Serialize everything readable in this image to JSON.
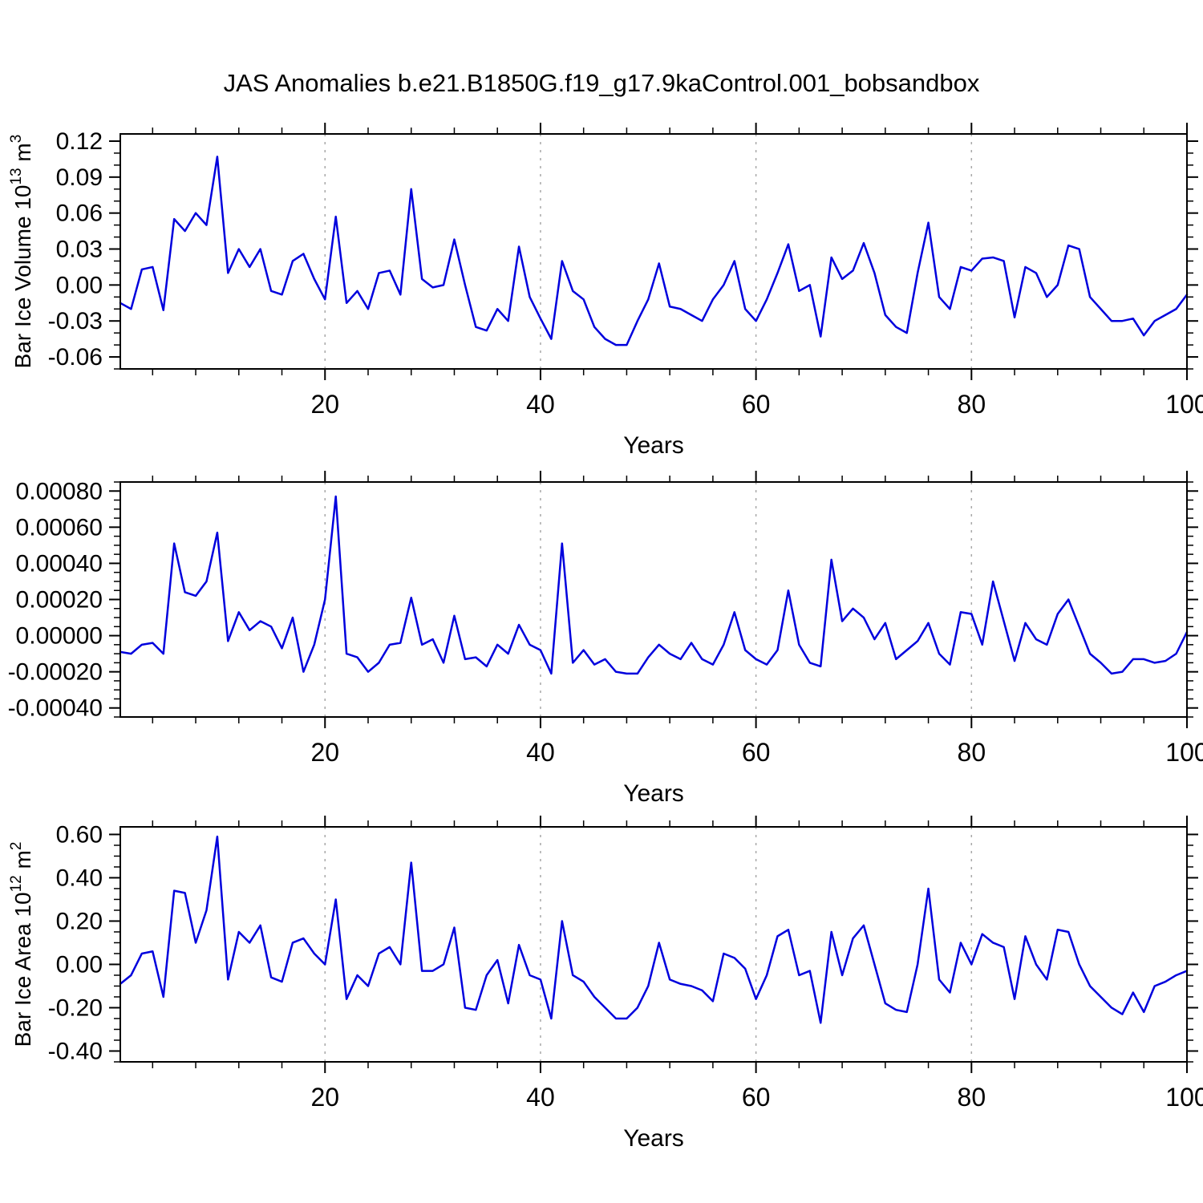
{
  "chart_data": {
    "type": "line",
    "title": "JAS Anomalies b.e21.B1850G.f19_g17.9kaControl.001_bobsandbox",
    "line_color": "#0000dd",
    "grid_color": "#a8a8a8",
    "axis_color": "#000000",
    "x": {
      "min": 1,
      "max": 100,
      "label": "Years",
      "major_ticks": [
        20,
        40,
        60,
        80,
        100
      ],
      "minor_step": 4,
      "grid_lines": [
        20,
        40,
        60,
        80
      ]
    },
    "panels": [
      {
        "name": "ice-volume",
        "ylabel_segments": [
          {
            "t": "Bar Ice Volume 10"
          },
          {
            "t": "13",
            "sup": true
          },
          {
            "t": " m"
          },
          {
            "t": "3",
            "sup": true
          }
        ],
        "ymin": -0.07,
        "ymax": 0.126,
        "yminor_step": 0.01,
        "yticks": [
          {
            "v": 0.12,
            "label": "0.12"
          },
          {
            "v": 0.09,
            "label": "0.09"
          },
          {
            "v": 0.06,
            "label": "0.06"
          },
          {
            "v": 0.03,
            "label": "0.03"
          },
          {
            "v": 0.0,
            "label": "0.00"
          },
          {
            "v": -0.03,
            "label": "-0.03"
          },
          {
            "v": -0.06,
            "label": "-0.06"
          }
        ],
        "values": [
          -0.015,
          -0.02,
          0.013,
          0.015,
          -0.021,
          0.055,
          0.045,
          0.06,
          0.05,
          0.107,
          0.01,
          0.03,
          0.015,
          0.03,
          -0.005,
          -0.008,
          0.02,
          0.026,
          0.005,
          -0.012,
          0.057,
          -0.015,
          -0.005,
          -0.02,
          0.01,
          0.012,
          -0.008,
          0.08,
          0.005,
          -0.002,
          0.0,
          0.038,
          0.0,
          -0.035,
          -0.038,
          -0.02,
          -0.03,
          0.032,
          -0.01,
          -0.028,
          -0.045,
          0.02,
          -0.005,
          -0.012,
          -0.035,
          -0.045,
          -0.05,
          -0.05,
          -0.03,
          -0.012,
          0.018,
          -0.018,
          -0.02,
          -0.025,
          -0.03,
          -0.012,
          0.0,
          0.02,
          -0.02,
          -0.03,
          -0.012,
          0.01,
          0.034,
          -0.005,
          0.0,
          -0.043,
          0.023,
          0.005,
          0.012,
          0.035,
          0.01,
          -0.025,
          -0.035,
          -0.04,
          0.01,
          0.052,
          -0.01,
          -0.02,
          0.015,
          0.012,
          0.022,
          0.023,
          0.02,
          -0.027,
          0.015,
          0.01,
          -0.01,
          0.0,
          0.033,
          0.03,
          -0.01,
          -0.02,
          -0.03,
          -0.03,
          -0.028,
          -0.042,
          -0.03,
          -0.025,
          -0.02,
          -0.008
        ]
      },
      {
        "name": "middle",
        "ylabel_segments": null,
        "ymin": -0.00045,
        "ymax": 0.00085,
        "yminor_step": 5e-05,
        "yticks": [
          {
            "v": 0.0008,
            "label": "0.00080"
          },
          {
            "v": 0.0006,
            "label": "0.00060"
          },
          {
            "v": 0.0004,
            "label": "0.00040"
          },
          {
            "v": 0.0002,
            "label": "0.00020"
          },
          {
            "v": 0.0,
            "label": "0.00000"
          },
          {
            "v": -0.0002,
            "label": "-0.00020"
          },
          {
            "v": -0.0004,
            "label": "-0.00040"
          }
        ],
        "values": [
          -9e-05,
          -0.0001,
          -5e-05,
          -4e-05,
          -0.0001,
          0.00051,
          0.00024,
          0.00022,
          0.0003,
          0.00057,
          -3e-05,
          0.00013,
          3e-05,
          8e-05,
          5e-05,
          -7e-05,
          0.0001,
          -0.0002,
          -5e-05,
          0.0002,
          0.00077,
          -0.0001,
          -0.00012,
          -0.0002,
          -0.00015,
          -5e-05,
          -4e-05,
          0.00021,
          -5e-05,
          -2e-05,
          -0.00015,
          0.00011,
          -0.00013,
          -0.00012,
          -0.00017,
          -5e-05,
          -0.0001,
          6e-05,
          -5e-05,
          -8e-05,
          -0.00021,
          0.00051,
          -0.00015,
          -8e-05,
          -0.00016,
          -0.00013,
          -0.0002,
          -0.00021,
          -0.00021,
          -0.00012,
          -5e-05,
          -0.0001,
          -0.00013,
          -4e-05,
          -0.00013,
          -0.00016,
          -5e-05,
          0.00013,
          -8e-05,
          -0.00013,
          -0.00016,
          -8e-05,
          0.00025,
          -5e-05,
          -0.00015,
          -0.00017,
          0.00042,
          8e-05,
          0.00015,
          0.0001,
          -2e-05,
          7e-05,
          -0.00013,
          -8e-05,
          -3e-05,
          7e-05,
          -0.0001,
          -0.00016,
          0.00013,
          0.00012,
          -5e-05,
          0.0003,
          8e-05,
          -0.00014,
          7e-05,
          -2e-05,
          -5e-05,
          0.00012,
          0.0002,
          5e-05,
          -0.0001,
          -0.00015,
          -0.00021,
          -0.0002,
          -0.00013,
          -0.00013,
          -0.00015,
          -0.00014,
          -0.0001,
          2e-05
        ]
      },
      {
        "name": "ice-area",
        "ylabel_segments": [
          {
            "t": "Bar Ice Area 10"
          },
          {
            "t": "12",
            "sup": true
          },
          {
            "t": " m"
          },
          {
            "t": "2",
            "sup": true
          }
        ],
        "ymin": -0.45,
        "ymax": 0.635,
        "yminor_step": 0.05,
        "yticks": [
          {
            "v": 0.6,
            "label": "0.60"
          },
          {
            "v": 0.4,
            "label": "0.40"
          },
          {
            "v": 0.2,
            "label": "0.20"
          },
          {
            "v": 0.0,
            "label": "0.00"
          },
          {
            "v": -0.2,
            "label": "-0.20"
          },
          {
            "v": -0.4,
            "label": "-0.40"
          }
        ],
        "values": [
          -0.09,
          -0.05,
          0.05,
          0.06,
          -0.15,
          0.34,
          0.33,
          0.1,
          0.25,
          0.59,
          -0.07,
          0.15,
          0.1,
          0.18,
          -0.06,
          -0.08,
          0.1,
          0.12,
          0.05,
          0.0,
          0.3,
          -0.16,
          -0.05,
          -0.1,
          0.05,
          0.08,
          0.0,
          0.47,
          -0.03,
          -0.03,
          0.0,
          0.17,
          -0.2,
          -0.21,
          -0.05,
          0.02,
          -0.18,
          0.09,
          -0.05,
          -0.07,
          -0.25,
          0.2,
          -0.05,
          -0.08,
          -0.15,
          -0.2,
          -0.25,
          -0.25,
          -0.2,
          -0.1,
          0.1,
          -0.07,
          -0.09,
          -0.1,
          -0.12,
          -0.17,
          0.05,
          0.03,
          -0.02,
          -0.16,
          -0.05,
          0.13,
          0.16,
          -0.05,
          -0.03,
          -0.27,
          0.15,
          -0.05,
          0.12,
          0.18,
          0.0,
          -0.18,
          -0.21,
          -0.22,
          0.0,
          0.35,
          -0.07,
          -0.13,
          0.1,
          0.0,
          0.14,
          0.1,
          0.08,
          -0.16,
          0.13,
          0.0,
          -0.07,
          0.16,
          0.15,
          0.0,
          -0.1,
          -0.15,
          -0.2,
          -0.23,
          -0.13,
          -0.22,
          -0.1,
          -0.08,
          -0.05,
          -0.03
        ]
      }
    ]
  }
}
